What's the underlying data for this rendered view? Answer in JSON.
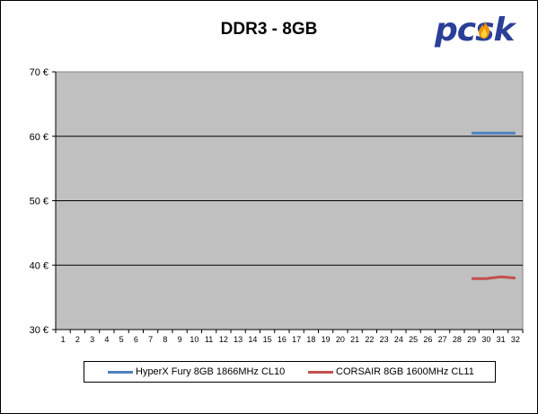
{
  "chart_data": {
    "type": "line",
    "title": "DDR3 - 8GB",
    "xlabel": "",
    "ylabel": "",
    "categories": [
      "1",
      "2",
      "3",
      "4",
      "5",
      "6",
      "7",
      "8",
      "9",
      "10",
      "11",
      "12",
      "13",
      "14",
      "15",
      "16",
      "17",
      "18",
      "19",
      "20",
      "21",
      "22",
      "23",
      "24",
      "25",
      "26",
      "27",
      "28",
      "29",
      "30",
      "31",
      "32"
    ],
    "y_ticks": [
      "30 €",
      "40 €",
      "50 €",
      "60 €",
      "70 €"
    ],
    "ylim": [
      30,
      70
    ],
    "grid": true,
    "plot_background": "#c0c0c0",
    "legend_position": "bottom",
    "series": [
      {
        "name": "HyperX Fury 8GB 1866MHz CL10",
        "color": "#4f81bd",
        "values": [
          null,
          null,
          null,
          null,
          null,
          null,
          null,
          null,
          null,
          null,
          null,
          null,
          null,
          null,
          null,
          null,
          null,
          null,
          null,
          null,
          null,
          null,
          null,
          null,
          null,
          null,
          null,
          null,
          60.5,
          60.5,
          60.5,
          60.5
        ]
      },
      {
        "name": "CORSAIR 8GB 1600MHz CL11",
        "color": "#c0504d",
        "values": [
          null,
          null,
          null,
          null,
          null,
          null,
          null,
          null,
          null,
          null,
          null,
          null,
          null,
          null,
          null,
          null,
          null,
          null,
          null,
          null,
          null,
          null,
          null,
          null,
          null,
          null,
          null,
          null,
          37.9,
          37.9,
          38.2,
          38.0
        ]
      }
    ]
  },
  "logo": {
    "text": "pcsk",
    "color": "#2a3f98"
  }
}
